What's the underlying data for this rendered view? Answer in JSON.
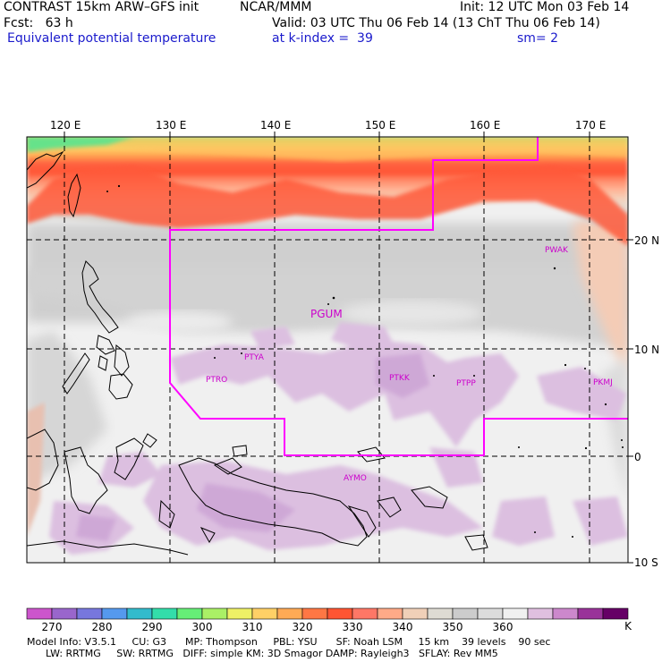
{
  "header": {
    "line1_left": "CONTRAST 15km ARW–GFS init",
    "line1_mid": "NCAR/MMM",
    "line1_right": "Init: 12 UTC Mon 03 Feb 14",
    "line2_left": "Fcst:   63 h",
    "line2_right": "Valid: 03 UTC Thu 06 Feb 14 (13 ChT Thu 06 Feb 14)",
    "line3_left": "Equivalent potential temperature",
    "line3_mid": "at k-index =  39",
    "line3_right": "sm= 2"
  },
  "map": {
    "lon_labels": [
      "120 E",
      "130 E",
      "140 E",
      "150 E",
      "160 E",
      "170 E"
    ],
    "lat_labels": [
      "20 N",
      "10 N",
      "0",
      "10 S"
    ],
    "stations": [
      {
        "id": "PWAK",
        "size": "small"
      },
      {
        "id": "PGUM",
        "size": "large"
      },
      {
        "id": "PTYA",
        "size": "small"
      },
      {
        "id": "PTRO",
        "size": "small"
      },
      {
        "id": "PTKK",
        "size": "small"
      },
      {
        "id": "PTPP",
        "size": "small"
      },
      {
        "id": "PKMJ",
        "size": "small"
      },
      {
        "id": "AYMO",
        "size": "small"
      }
    ],
    "colors": {
      "station": "#cc00cc",
      "domain_box": "#ff00ff"
    }
  },
  "colorbar": {
    "colors": [
      "#cc55cc",
      "#9966cc",
      "#7777dd",
      "#5599ee",
      "#33bbcc",
      "#33ddaa",
      "#66ee77",
      "#aaf066",
      "#eef066",
      "#ffd066",
      "#ffaa55",
      "#ff7744",
      "#ff5533",
      "#ff7766",
      "#ffaa88",
      "#f0d0b8",
      "#dedbd3",
      "#cccccc",
      "#dcdcdc",
      "#f0f0f0",
      "#e0c0e0",
      "#cc88cc",
      "#993399",
      "#660066"
    ],
    "labels": [
      "270",
      "280",
      "290",
      "300",
      "310",
      "320",
      "330",
      "340",
      "350",
      "360",
      "K"
    ]
  },
  "footer": {
    "line1": "Model Info: V3.5.1     CU: G3      MP: Thompson     PBL: YSU      SF: Noah LSM     15 km    39 levels    90 sec",
    "line2": "      LW: RRTMG     SW: RRTMG   DIFF: simple KM: 3D Smagor DAMP: Rayleigh3   SFLAY: Rev MM5"
  }
}
